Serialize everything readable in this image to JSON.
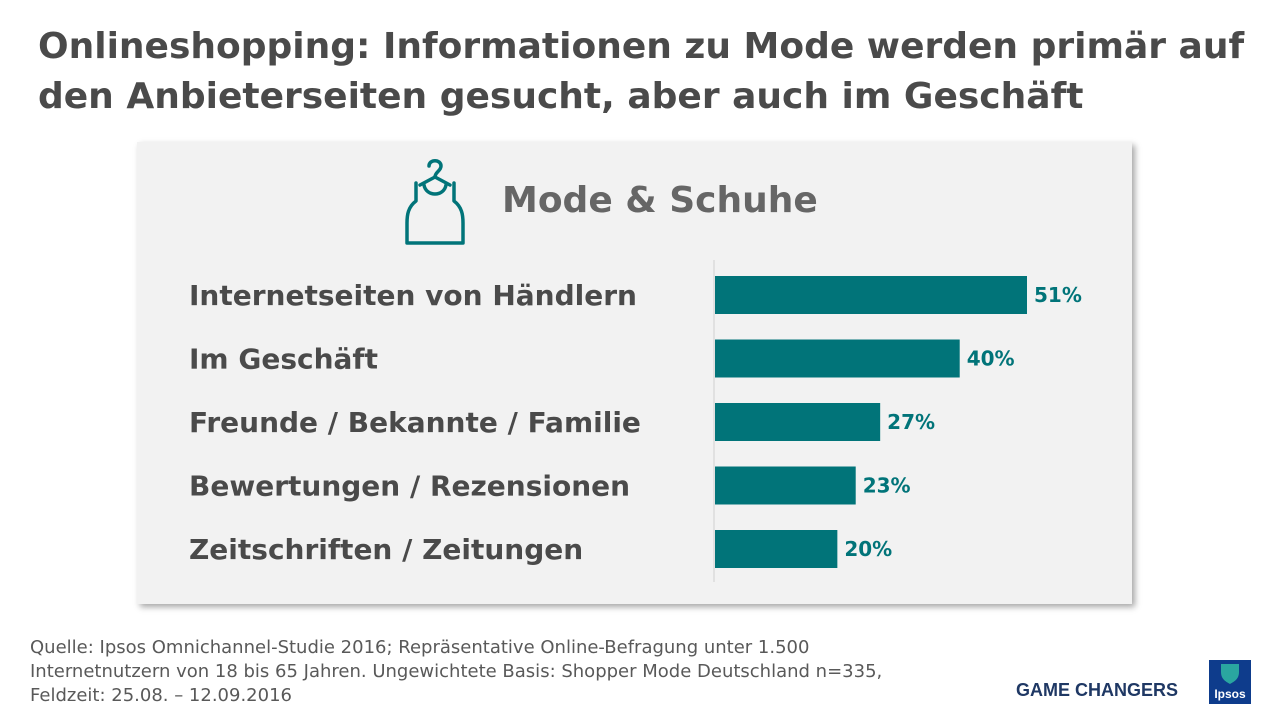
{
  "title": {
    "line1": "Onlineshopping: Informationen zu Mode werden primär auf",
    "line2": "den Anbieterseiten gesucht, aber auch im Geschäft"
  },
  "panel": {
    "title": "Mode & Schuhe",
    "icon": "hanger-tank-top-icon"
  },
  "chart_data": {
    "type": "bar",
    "orientation": "horizontal",
    "title": "Mode & Schuhe",
    "categories": [
      "Internetseiten von Händlern",
      "Im Geschäft",
      "Freunde / Bekannte / Familie",
      "Bewertungen / Rezensionen",
      "Zeitschriften / Zeitungen"
    ],
    "values": [
      51,
      40,
      27,
      23,
      20
    ],
    "value_labels": [
      "51%",
      "40%",
      "27%",
      "23%",
      "20%"
    ],
    "unit": "%",
    "xlim": [
      0,
      51
    ],
    "bar_color": "#017479",
    "label_color": "#017479",
    "category_color": "#4a4a4a",
    "grid": false,
    "legend": "none"
  },
  "footer": {
    "source_line1": "Quelle: Ipsos Omnichannel-Studie 2016; Repräsentative Online-Befragung unter 1.500",
    "source_line2": "Internetnutzern von 18 bis 65 Jahren. Ungewichtete Basis: Shopper Mode Deutschland n=335,",
    "source_line3": "Feldzeit: 25.08. – 12.09.2016",
    "tagline": "GAME CHANGERS",
    "logo_text": "Ipsos"
  },
  "colors": {
    "accent": "#017479",
    "panel_bg": "#f2f2f2",
    "title": "#4a4a4a",
    "logo_bg": "#0e3c8c"
  }
}
